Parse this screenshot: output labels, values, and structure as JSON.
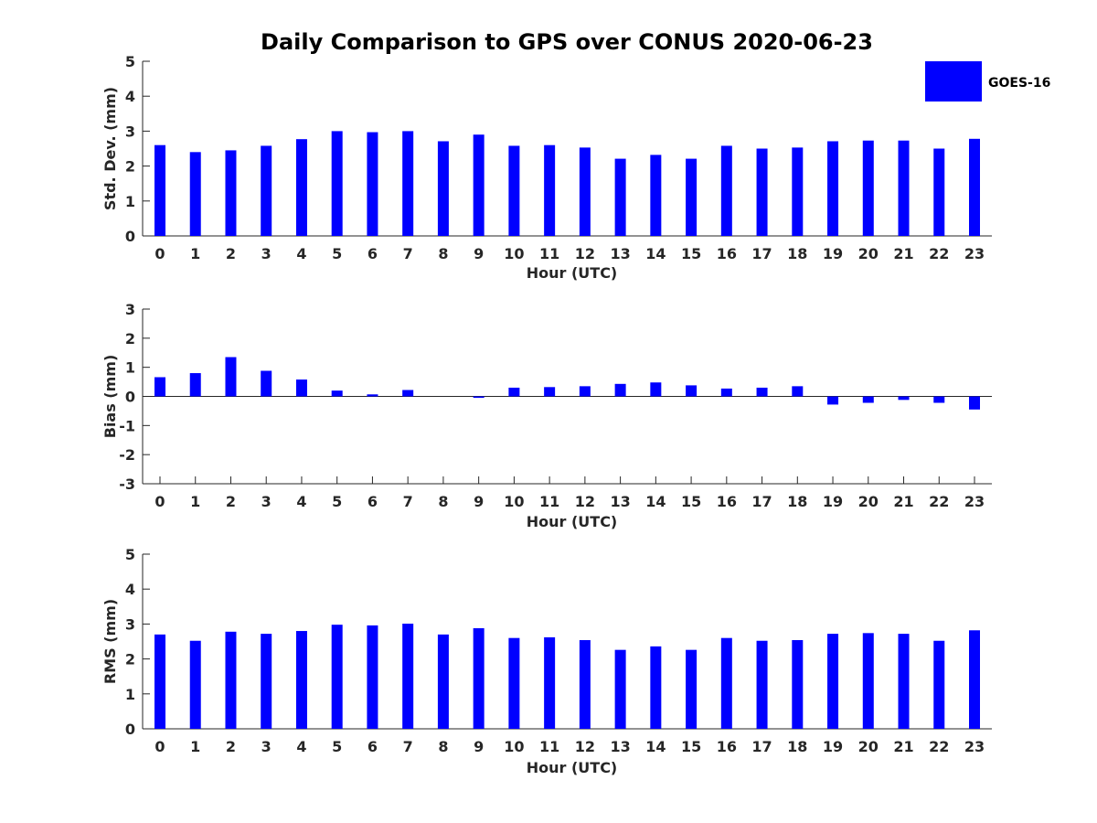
{
  "chart_data": {
    "type": "bar",
    "title": "Daily Comparison to GPS over CONUS 2020-06-23",
    "legend": {
      "label": "GOES-16",
      "color": "#0000ff",
      "placement": "top-right"
    },
    "categories": [
      "0",
      "1",
      "2",
      "3",
      "4",
      "5",
      "6",
      "7",
      "8",
      "9",
      "10",
      "11",
      "12",
      "13",
      "14",
      "15",
      "16",
      "17",
      "18",
      "19",
      "20",
      "21",
      "22",
      "23"
    ],
    "panels": [
      {
        "id": "stddev",
        "ylabel": "Std. Dev. (mm)",
        "xlabel": "Hour (UTC)",
        "ylim": [
          0,
          5
        ],
        "yticks": [
          "0",
          "1",
          "2",
          "3",
          "4",
          "5"
        ],
        "series": [
          {
            "name": "GOES-16",
            "values": [
              2.6,
              2.4,
              2.45,
              2.58,
              2.77,
              3.0,
              2.97,
              3.0,
              2.71,
              2.9,
              2.58,
              2.6,
              2.53,
              2.21,
              2.32,
              2.21,
              2.58,
              2.5,
              2.53,
              2.71,
              2.73,
              2.73,
              2.5,
              2.78
            ]
          }
        ]
      },
      {
        "id": "bias",
        "ylabel": "Bias (mm)",
        "xlabel": "Hour (UTC)",
        "ylim": [
          -3,
          3
        ],
        "yticks": [
          "-3",
          "-2",
          "-1",
          "0",
          "1",
          "2",
          "3"
        ],
        "series": [
          {
            "name": "GOES-16",
            "values": [
              0.66,
              0.8,
              1.35,
              0.88,
              0.58,
              0.2,
              0.07,
              0.22,
              0.0,
              -0.05,
              0.3,
              0.32,
              0.35,
              0.43,
              0.48,
              0.38,
              0.27,
              0.3,
              0.35,
              -0.28,
              -0.22,
              -0.12,
              -0.22,
              -0.45
            ]
          }
        ]
      },
      {
        "id": "rms",
        "ylabel": "RMS (mm)",
        "xlabel": "Hour (UTC)",
        "ylim": [
          0,
          5
        ],
        "yticks": [
          "0",
          "1",
          "2",
          "3",
          "4",
          "5"
        ],
        "series": [
          {
            "name": "GOES-16",
            "values": [
              2.7,
              2.52,
              2.78,
              2.72,
              2.8,
              2.98,
              2.96,
              3.01,
              2.7,
              2.88,
              2.6,
              2.62,
              2.54,
              2.26,
              2.36,
              2.26,
              2.6,
              2.52,
              2.54,
              2.72,
              2.74,
              2.72,
              2.52,
              2.82
            ]
          }
        ]
      }
    ]
  }
}
